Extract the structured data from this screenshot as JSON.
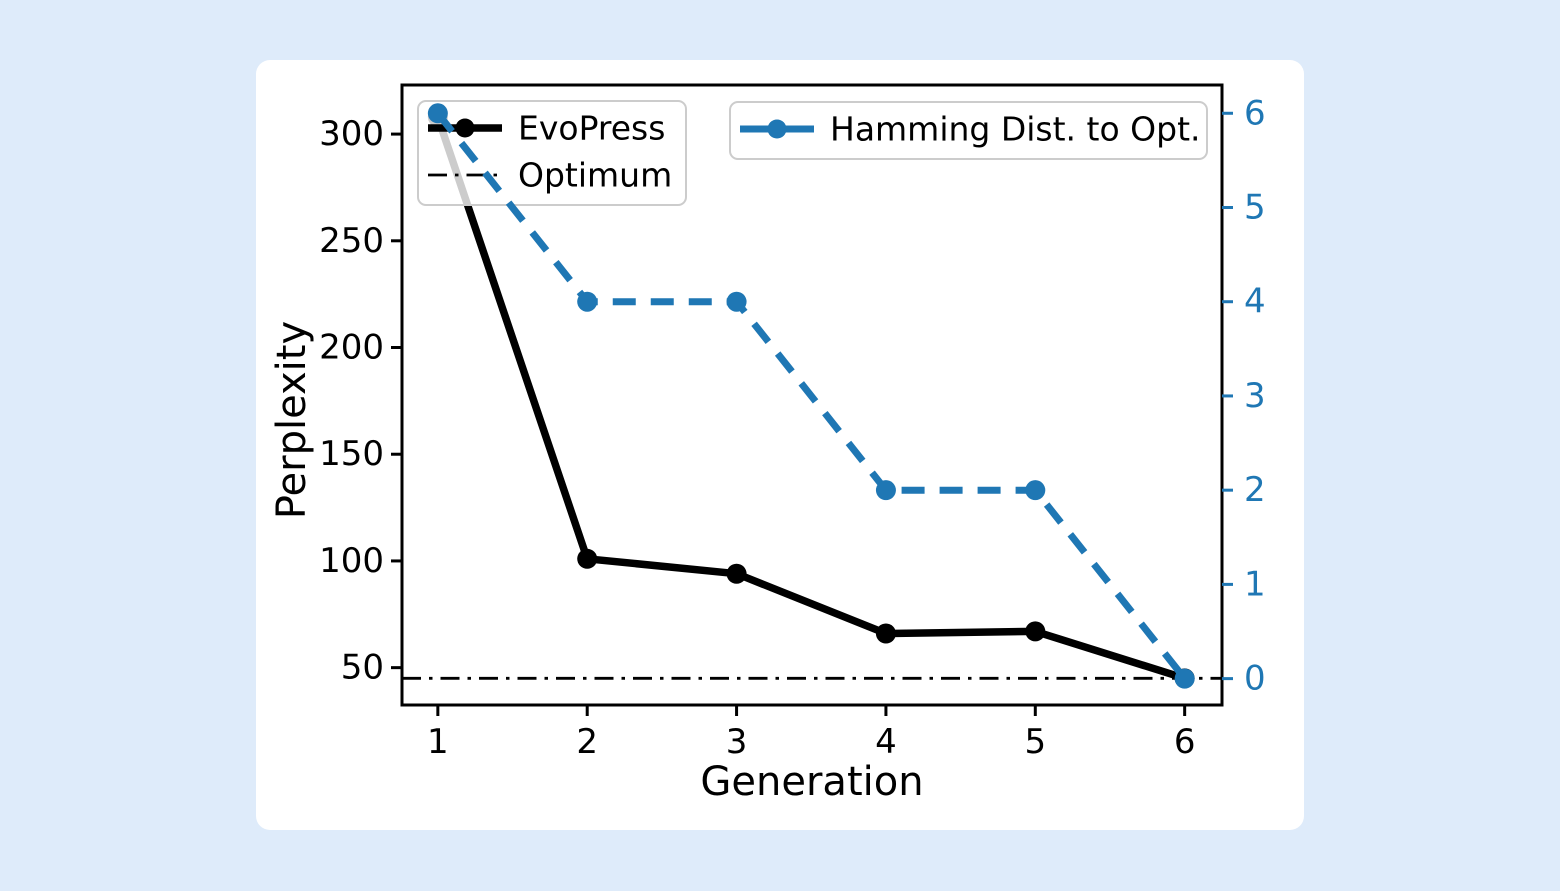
{
  "page": {
    "background_color": "#deebfa",
    "card_color": "#ffffff"
  },
  "chart_data": {
    "type": "line",
    "title": "",
    "xlabel": "Generation",
    "ylabel_left": "Perplexity",
    "ylabel_right": "",
    "x": [
      1,
      2,
      3,
      4,
      5,
      6
    ],
    "series": [
      {
        "name": "EvoPress",
        "axis": "left",
        "color": "#000000",
        "linestyle": "solid",
        "linewidth": 7.5,
        "marker": "circle",
        "marker_size": 10,
        "values": [
          308,
          101,
          94,
          66,
          67,
          45
        ]
      },
      {
        "name": "Optimum",
        "axis": "left",
        "color": "#000000",
        "linestyle": "dashdot",
        "linewidth": 2.8,
        "marker": "none",
        "axhline": 45
      },
      {
        "name": "Hamming Dist. to Opt.",
        "axis": "right",
        "color": "#1f77b4",
        "linestyle": "dashed",
        "linewidth": 7,
        "marker": "circle",
        "marker_size": 10,
        "values": [
          6,
          4,
          4,
          2,
          2,
          0
        ]
      }
    ],
    "xlim": [
      0.76,
      6.25
    ],
    "ylim_left": [
      32.5,
      323
    ],
    "ylim_right": [
      -0.28,
      6.3
    ],
    "xticks": [
      1,
      2,
      3,
      4,
      5,
      6
    ],
    "yticks_left": [
      50,
      100,
      150,
      200,
      250,
      300
    ],
    "yticks_right": [
      0,
      1,
      2,
      3,
      4,
      5,
      6
    ],
    "grid": false,
    "axis_color": "#000000",
    "right_axis_color": "#1f77b4",
    "legend_left": {
      "entries": [
        "EvoPress",
        "Optimum"
      ],
      "position": "upper left"
    },
    "legend_right": {
      "entries": [
        "Hamming Dist. to Opt."
      ],
      "position": "upper center"
    },
    "legend_background": "rgba(255,255,255,0.8)",
    "legend_border_color": "#cccccc"
  }
}
